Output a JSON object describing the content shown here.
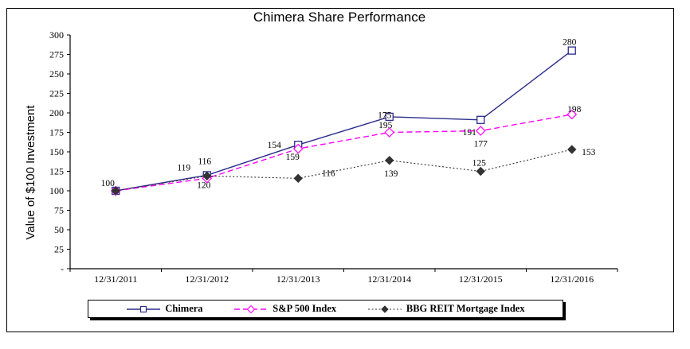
{
  "chart_data": {
    "type": "line",
    "title": "Chimera Share Performance",
    "xlabel": "",
    "ylabel": "Value of $100 Investment",
    "ylim": [
      0,
      300
    ],
    "ytick_step": 25,
    "ytick_labels": [
      "-",
      "25",
      "50",
      "75",
      "100",
      "125",
      "150",
      "175",
      "200",
      "225",
      "250",
      "275",
      "300"
    ],
    "categories": [
      "12/31/2011",
      "12/31/2012",
      "12/31/2013",
      "12/31/2014",
      "12/31/2015",
      "12/31/2016"
    ],
    "series": [
      {
        "name": "Chimera",
        "values": [
          100,
          120,
          159,
          195,
          191,
          280
        ],
        "color": "#2b2b8c",
        "line_style": "solid",
        "marker": "square-open"
      },
      {
        "name": "S&P 500 Index",
        "values": [
          100,
          116,
          154,
          175,
          177,
          198
        ],
        "color": "#ff00ff",
        "line_style": "dashed",
        "marker": "diamond-open"
      },
      {
        "name": "BBG REIT Mortgage Index",
        "values": [
          100,
          119,
          116,
          139,
          125,
          153
        ],
        "color": "#333333",
        "line_style": "dotted",
        "marker": "diamond-filled"
      }
    ],
    "point_labels": [
      [
        "100",
        "120",
        "159",
        "195",
        "191",
        "280"
      ],
      [
        null,
        "116",
        "154",
        "175",
        "177",
        "198"
      ],
      [
        null,
        "119",
        "116",
        "139",
        "125",
        "153"
      ]
    ],
    "legend_position": "bottom",
    "grid": false,
    "axis_color": "#000000",
    "background_color": "#ffffff"
  }
}
